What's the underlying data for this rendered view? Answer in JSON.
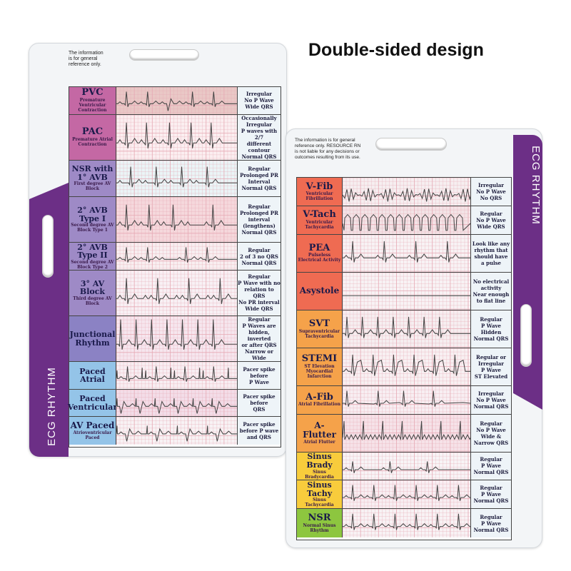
{
  "headline": "Double-sided design",
  "left_card": {
    "disclaimer": [
      "The information",
      "is for general",
      "reference only."
    ],
    "band_label": "ECG RHYTHM",
    "rows": [
      {
        "name": "PVC",
        "sub": "Premature Ventricular Contraction",
        "desc": [
          "Irregular",
          "No P Wave",
          "Wide QRS"
        ],
        "color": "#c468a4",
        "bg": "#e9c8c6",
        "wave": "pvc"
      },
      {
        "name": "PAC",
        "sub": "Premature Atrial Contraction",
        "desc": [
          "Occasionally",
          "Irregular",
          "P waves with 2/7",
          "different contour",
          "Normal QRS"
        ],
        "color": "#c468a4",
        "bg": "#fbeef0",
        "wave": "pac"
      },
      {
        "name": "NSR with 1° AVB",
        "sub": "First degree AV Block",
        "desc": [
          "Regular",
          "Prolonged PR",
          "Interval",
          "Normal QRS"
        ],
        "color": "#9e8ac6",
        "bg": "#eaf4f6",
        "wave": "avb1"
      },
      {
        "name": "2° AVB Type I",
        "sub": "Second degree AV Block Type 1",
        "desc": [
          "Regular",
          "Prolonged PR",
          "interval",
          "(lengthens)",
          "Normal QRS"
        ],
        "color": "#9e8ac6",
        "bg": "#f5d8dc",
        "wave": "avb2i"
      },
      {
        "name": "2° AVB Type II",
        "sub": "Second degree AV Block Type 2",
        "desc": [
          "Regular",
          "2 of 3 no QRS",
          "Normal QRS"
        ],
        "color": "#9e8ac6",
        "bg": "#f8eef0",
        "wave": "avb2ii"
      },
      {
        "name": "3° AV Block",
        "sub": "Third degree AV Block",
        "desc": [
          "Regular",
          "P Wave with no",
          "relation to QRS",
          "No PR interval",
          "Wide QRS"
        ],
        "color": "#9e8ac6",
        "bg": "#f8f0f4",
        "wave": "avb3"
      },
      {
        "name": "Junctional Rhythm",
        "sub": "",
        "desc": [
          "Regular",
          "P Waves are",
          "hidden, inverted",
          "or after QRS",
          "Narrow or Wide"
        ],
        "color": "#8b82c4",
        "bg": "#f6e6ee",
        "wave": "junctional"
      },
      {
        "name": "Paced Atrial",
        "sub": "",
        "desc": [
          "Pacer spike",
          "before",
          "P Wave"
        ],
        "color": "#94c4e8",
        "bg": "#f8eef2",
        "wave": "paced_a"
      },
      {
        "name": "Paced Ventricular",
        "sub": "",
        "desc": [
          "Pacer spike",
          "before",
          "QRS"
        ],
        "color": "#94c4e8",
        "bg": "#f3dde8",
        "wave": "paced_v"
      },
      {
        "name": "AV Paced",
        "sub": "Atrioventricular Paced",
        "desc": [
          "Pacer spike",
          "before P wave",
          "and QRS"
        ],
        "color": "#94c4e8",
        "bg": "#f8f2f4",
        "wave": "paced_av"
      }
    ]
  },
  "right_card": {
    "disclaimer": [
      "The information is for general",
      "reference only. RESOURCE RN",
      "is not liable for any decisions or",
      "outcomes resulting from its use."
    ],
    "band_label": "ECG RHYTHM",
    "rows": [
      {
        "name": "V-Fib",
        "sub": "Ventricular Fibrillation",
        "desc": [
          "Irregular",
          "No P Wave",
          "No QRS"
        ],
        "color": "#ef6b52",
        "bg": "#f6eef0",
        "wave": "vfib"
      },
      {
        "name": "V-Tach",
        "sub": "Ventricular Tachycardia",
        "desc": [
          "Regular",
          "No P Wave",
          "Wide QRS"
        ],
        "color": "#ef6b52",
        "bg": "#f3e3e6",
        "wave": "vtach"
      },
      {
        "name": "PEA",
        "sub": "Pulseless Electrical Activity",
        "desc": [
          "Look like any",
          "rhythm that",
          "should have",
          "a pulse"
        ],
        "color": "#ef6b52",
        "bg": "#f8f2f4",
        "wave": "pea"
      },
      {
        "name": "Asystole",
        "sub": "",
        "desc": [
          "No electrical",
          "activity",
          "Near enough",
          "to flat line"
        ],
        "color": "#ef6b52",
        "bg": "#f8f2f4",
        "wave": "flat"
      },
      {
        "name": "SVT",
        "sub": "Supraventricular Tachycardia",
        "desc": [
          "Regular",
          "P Wave",
          "Hidden",
          "Normal QRS"
        ],
        "color": "#f5a24a",
        "bg": "#f6eef0",
        "wave": "svt"
      },
      {
        "name": "STEMI",
        "sub": "ST Elevation Myocardial Infarction",
        "desc": [
          "Regular or",
          "Irregular",
          "P Wave",
          "ST Elevated"
        ],
        "color": "#f5a24a",
        "bg": "#f8f0f2",
        "wave": "stemi"
      },
      {
        "name": "A-Fib",
        "sub": "Atrial Fibrillation",
        "desc": [
          "Irregular",
          "No P Wave",
          "Normal QRS"
        ],
        "color": "#f5a24a",
        "bg": "#f8eef2",
        "wave": "afib"
      },
      {
        "name": "A-Flutter",
        "sub": "Atrial Flutter",
        "desc": [
          "Regular",
          "No P Wave",
          "Wide &",
          "Narrow QRS"
        ],
        "color": "#f5a24a",
        "bg": "#f6e2e8",
        "wave": "aflutter"
      },
      {
        "name": "Sinus Brady",
        "sub": "Sinus Bradycardia",
        "desc": [
          "Regular",
          "P Wave",
          "Normal QRS"
        ],
        "color": "#f8cc3c",
        "bg": "#f8f4f6",
        "wave": "brady"
      },
      {
        "name": "Sinus Tachy",
        "sub": "Sinus Tachycardia",
        "desc": [
          "Regular",
          "P Wave",
          "Normal QRS"
        ],
        "color": "#f8cc3c",
        "bg": "#f8eef2",
        "wave": "tachy"
      },
      {
        "name": "NSR",
        "sub": "Normal Sinus Rhythm",
        "desc": [
          "Regular",
          "P Wave",
          "Normal QRS"
        ],
        "color": "#8dc63f",
        "bg": "#f8f2f4",
        "wave": "nsr"
      }
    ]
  }
}
